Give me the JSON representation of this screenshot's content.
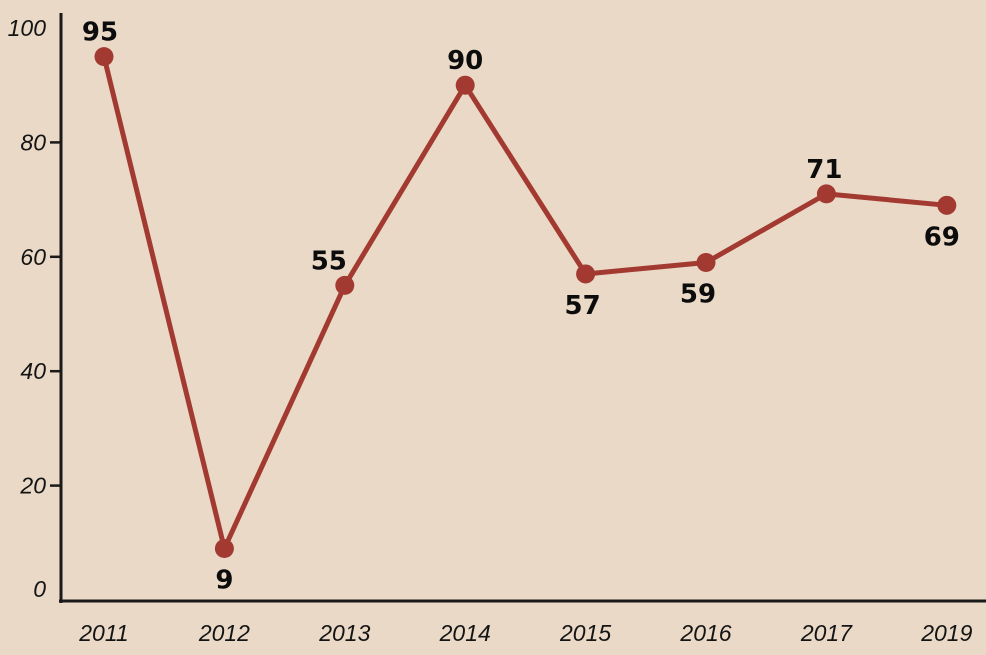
{
  "chart_data": {
    "type": "line",
    "categories": [
      "2011",
      "2012",
      "2013",
      "2014",
      "2015",
      "2016",
      "2017",
      "2019"
    ],
    "values": [
      95,
      9,
      55,
      90,
      57,
      59,
      71,
      69
    ],
    "title": "",
    "xlabel": "",
    "ylabel": "",
    "ylim": [
      0,
      100
    ],
    "yticks": [
      0,
      20,
      40,
      60,
      80,
      100
    ],
    "grid": false,
    "legend": false,
    "line_color": "#a33a31",
    "point_color": "#a33a31",
    "axis_color": "#1a1a1a",
    "label_color": "#0c0c0c",
    "background_color": "#e9d9c6",
    "label_positions": [
      "above",
      "below",
      "above",
      "above",
      "below",
      "below",
      "above",
      "below"
    ],
    "label_dx": [
      -4,
      0,
      -16,
      0,
      -3,
      -8,
      -2,
      -5
    ]
  }
}
